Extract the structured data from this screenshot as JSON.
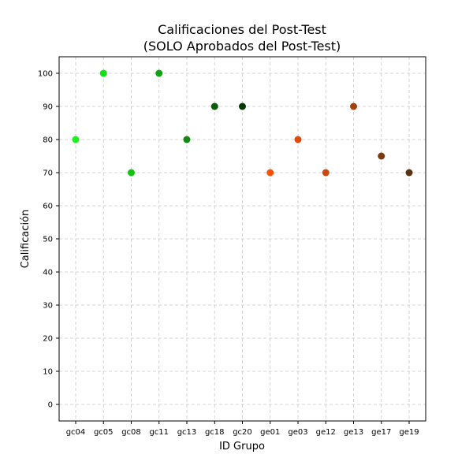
{
  "chart_data": {
    "type": "scatter",
    "title_lines": [
      "Calificaciones del Post-Test",
      "(SOLO Aprobados del Post-Test)"
    ],
    "xlabel": "ID Grupo",
    "ylabel": "Calificación",
    "categories": [
      "gc04",
      "gc05",
      "gc08",
      "gc11",
      "gc13",
      "gc18",
      "gc20",
      "ge01",
      "ge03",
      "ge12",
      "ge13",
      "ge17",
      "ge19"
    ],
    "values": [
      80,
      100,
      70,
      100,
      80,
      90,
      90,
      70,
      80,
      70,
      90,
      75,
      70
    ],
    "colors": [
      "#1df01d",
      "#14e014",
      "#10c410",
      "#0fa30f",
      "#118a11",
      "#0a5c0a",
      "#053805",
      "#ff5005",
      "#e04a0a",
      "#c94a0c",
      "#a3400e",
      "#7a3a12",
      "#5a3314"
    ],
    "ylim": [
      -5,
      105
    ],
    "yticks": [
      0,
      10,
      20,
      30,
      40,
      50,
      60,
      70,
      80,
      90,
      100
    ],
    "grid": true
  }
}
